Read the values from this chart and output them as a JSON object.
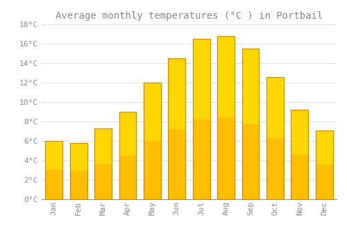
{
  "title": "Average monthly temperatures (°C ) in Portbail",
  "months": [
    "Jan",
    "Feb",
    "Mar",
    "Apr",
    "May",
    "Jun",
    "Jul",
    "Aug",
    "Sep",
    "Oct",
    "Nov",
    "Dec"
  ],
  "values": [
    6.0,
    5.8,
    7.3,
    9.0,
    12.0,
    14.5,
    16.5,
    16.8,
    15.5,
    12.6,
    9.2,
    7.1
  ],
  "bar_color": "#FFBF00",
  "bar_edge_color": "#CC8800",
  "background_color": "#FFFFFF",
  "grid_color": "#E0E0E0",
  "text_color": "#888888",
  "ylim": [
    0,
    18
  ],
  "yticks": [
    0,
    2,
    4,
    6,
    8,
    10,
    12,
    14,
    16,
    18
  ],
  "title_fontsize": 10,
  "tick_fontsize": 8,
  "tick_font": "monospace"
}
